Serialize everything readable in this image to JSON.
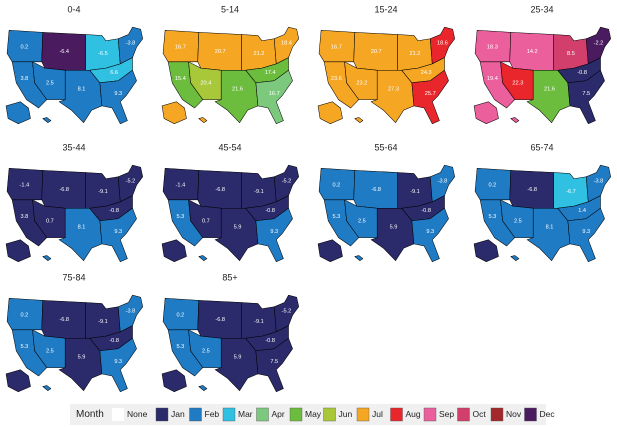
{
  "panels": [
    {
      "title": "0-4",
      "labels": [
        "0.2",
        "-6.4",
        "-6.5",
        "-3.8",
        "3.8",
        "2.5",
        "8.1",
        "6.6",
        "9.3"
      ],
      "months": [
        "Feb",
        "Dec",
        "Mar",
        "Feb",
        "Feb",
        "Feb",
        "Feb",
        "Mar",
        "Feb",
        "Feb",
        "Feb"
      ]
    },
    {
      "title": "5-14",
      "labels": [
        "16.7",
        "20.7",
        "21.2",
        "18.4",
        "15.4",
        "20.4",
        "21.6",
        "17.4",
        "16.7"
      ],
      "months": [
        "Jul",
        "Jul",
        "Jul",
        "Jul",
        "May",
        "Jun",
        "May",
        "May",
        "Apr",
        "Jul",
        "Jul"
      ]
    },
    {
      "title": "15-24",
      "labels": [
        "16.7",
        "20.7",
        "21.2",
        "18.6",
        "23.6",
        "23.2",
        "27.3",
        "24.3",
        "25.7"
      ],
      "months": [
        "Jul",
        "Jul",
        "Jul",
        "Aug",
        "Jul",
        "Jul",
        "Jul",
        "Jul",
        "Aug",
        "Jul",
        "Jul"
      ]
    },
    {
      "title": "25-34",
      "labels": [
        "18.3",
        "14.2",
        "8.5",
        "-2.2",
        "19.4",
        "22.3",
        "21.6",
        "-0.8",
        "7.5"
      ],
      "months": [
        "Sep",
        "Sep",
        "Oct",
        "Dec",
        "Sep",
        "Aug",
        "May",
        "Jan",
        "Jan",
        "Sep",
        "Sep"
      ]
    },
    {
      "title": "35-44",
      "labels": [
        "-1.4",
        "-6.8",
        "-9.1",
        "-5.2",
        "3.8",
        "0.7",
        "8.1",
        "-0.8",
        "9.3"
      ],
      "months": [
        "Jan",
        "Jan",
        "Jan",
        "Jan",
        "Jan",
        "Jan",
        "Feb",
        "Jan",
        "Feb",
        "Jan",
        "Feb"
      ]
    },
    {
      "title": "45-54",
      "labels": [
        "-1.4",
        "-6.8",
        "-9.1",
        "-5.2",
        "5.3",
        "0.7",
        "5.9",
        "-0.8",
        "9.3"
      ],
      "months": [
        "Jan",
        "Jan",
        "Jan",
        "Jan",
        "Feb",
        "Jan",
        "Jan",
        "Jan",
        "Feb",
        "Jan",
        "Feb"
      ]
    },
    {
      "title": "55-64",
      "labels": [
        "0.2",
        "-6.8",
        "-9.1",
        "-3.8",
        "5.3",
        "2.5",
        "5.9",
        "-0.8",
        "9.3"
      ],
      "months": [
        "Feb",
        "Feb",
        "Jan",
        "Feb",
        "Feb",
        "Feb",
        "Jan",
        "Jan",
        "Feb",
        "Jan",
        "Feb"
      ]
    },
    {
      "title": "65-74",
      "labels": [
        "0.2",
        "-6.8",
        "-6.7",
        "-3.8",
        "5.3",
        "2.5",
        "8.1",
        "1.4",
        "9.3"
      ],
      "months": [
        "Feb",
        "Jan",
        "Mar",
        "Feb",
        "Feb",
        "Feb",
        "Feb",
        "Feb",
        "Feb",
        "Jan",
        "Feb"
      ]
    },
    {
      "title": "75-84",
      "labels": [
        "0.2",
        "-6.8",
        "-9.1",
        "-3.8",
        "5.3",
        "2.5",
        "5.9",
        "-0.8",
        "9.3"
      ],
      "months": [
        "Feb",
        "Jan",
        "Jan",
        "Feb",
        "Feb",
        "Feb",
        "Jan",
        "Jan",
        "Feb",
        "Jan",
        "Feb"
      ]
    },
    {
      "title": "85+",
      "labels": [
        "0.2",
        "-6.8",
        "-9.1",
        "-5.2",
        "5.3",
        "2.5",
        "5.9",
        "-0.8",
        "7.5"
      ],
      "months": [
        "Feb",
        "Jan",
        "Jan",
        "Jan",
        "Feb",
        "Feb",
        "Jan",
        "Jan",
        "Jan",
        "Jan",
        "Feb"
      ]
    }
  ],
  "legend": {
    "title": "Month",
    "items": [
      {
        "label": "None",
        "color": "#ffffff"
      },
      {
        "label": "Jan",
        "color": "#2b2a6b"
      },
      {
        "label": "Feb",
        "color": "#1f7bc4"
      },
      {
        "label": "Mar",
        "color": "#2fc0e2"
      },
      {
        "label": "Apr",
        "color": "#7cc97e"
      },
      {
        "label": "May",
        "color": "#6cbd3e"
      },
      {
        "label": "Jun",
        "color": "#a8c83a"
      },
      {
        "label": "Jul",
        "color": "#f5a623"
      },
      {
        "label": "Aug",
        "color": "#e9262b"
      },
      {
        "label": "Sep",
        "color": "#ea5f9c"
      },
      {
        "label": "Oct",
        "color": "#d33f6d"
      },
      {
        "label": "Nov",
        "color": "#a3282c"
      },
      {
        "label": "Dec",
        "color": "#4a1b5e"
      }
    ]
  }
}
